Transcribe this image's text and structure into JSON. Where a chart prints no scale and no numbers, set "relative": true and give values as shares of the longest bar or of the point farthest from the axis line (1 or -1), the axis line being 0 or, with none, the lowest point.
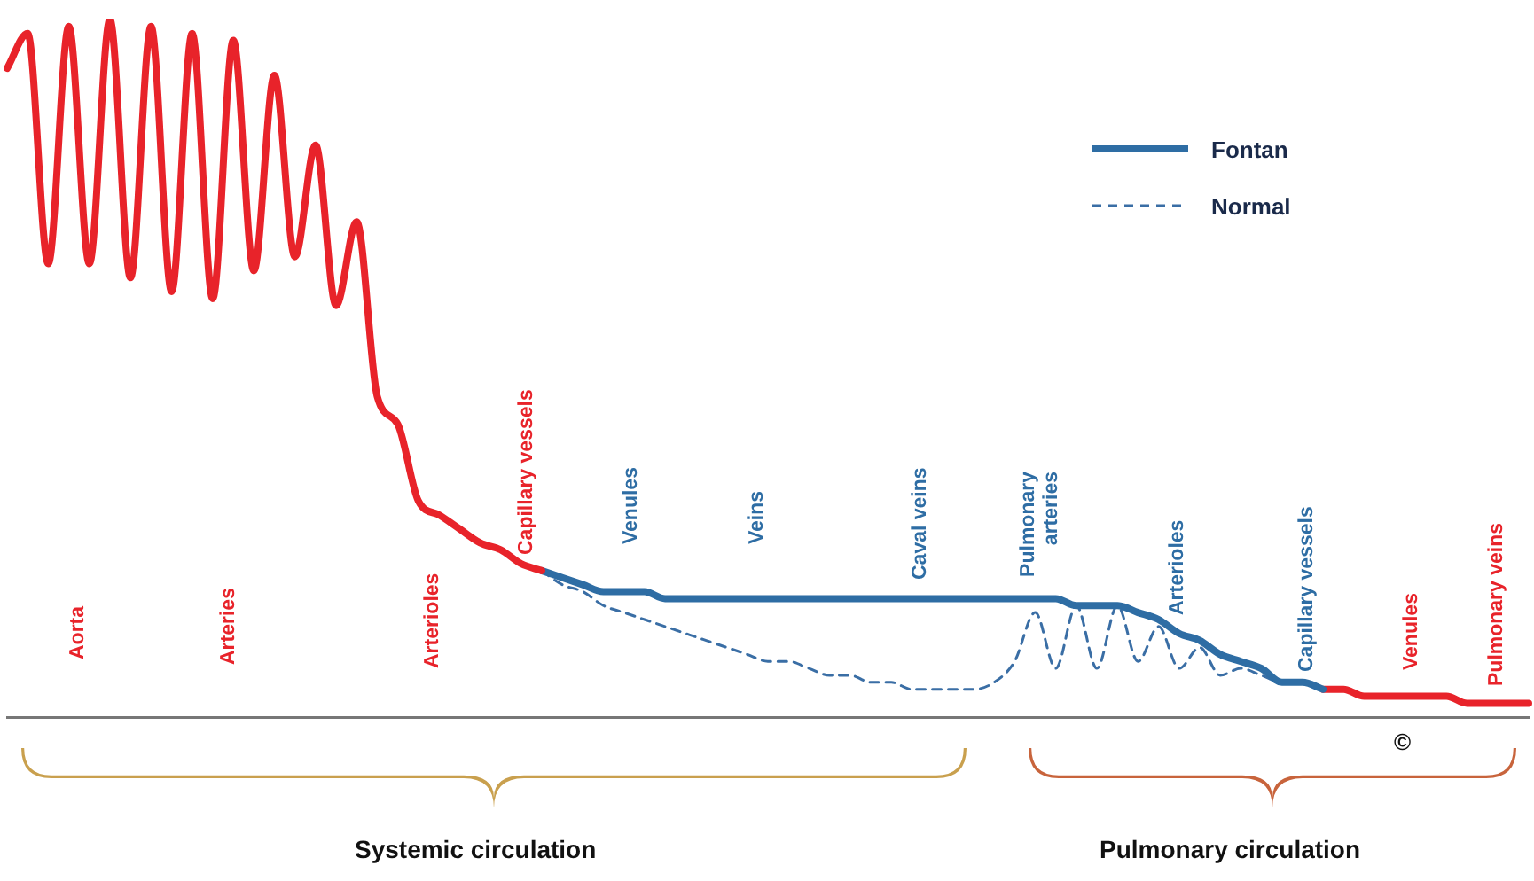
{
  "chart_data": {
    "type": "line",
    "relative": true,
    "marker": "none",
    "legend": "top right",
    "grid": false,
    "categories": [
      null,
      null,
      null,
      null,
      null,
      null,
      null,
      null,
      null,
      null,
      null,
      null,
      null,
      null,
      null,
      null,
      null,
      null,
      null,
      null,
      null,
      null,
      null,
      null,
      null,
      null,
      null,
      null,
      null,
      null,
      null,
      null,
      null,
      null,
      null,
      null,
      null,
      null,
      null,
      null,
      null,
      null,
      null,
      null,
      null,
      null,
      null,
      null,
      null,
      null,
      null,
      null,
      null,
      null,
      null,
      null,
      null,
      null,
      null,
      null,
      null,
      null,
      null,
      null,
      null,
      null,
      null,
      null,
      null,
      null,
      null,
      null,
      null,
      null,
      null
    ],
    "series": [
      {
        "color": "#e8232a",
        "values": [
          0.93,
          0.98,
          0.65,
          0.99,
          0.65,
          1,
          0.63,
          0.99,
          0.61,
          0.98,
          0.6,
          0.97,
          0.64,
          0.92,
          0.66,
          0.82,
          0.59,
          0.71,
          0.46,
          0.42,
          0.31,
          0.29,
          0.27,
          0.25,
          0.24,
          0.22,
          0.21,
          null,
          null,
          null,
          null,
          null,
          null,
          null,
          null,
          null,
          null,
          null,
          null,
          null,
          null,
          null,
          null,
          null,
          null,
          null,
          null,
          null,
          null,
          null,
          null,
          null,
          null,
          null,
          null,
          null,
          null,
          null,
          null,
          null,
          null,
          null,
          null,
          null,
          null,
          null,
          null,
          null,
          null,
          null,
          null,
          null,
          null,
          null,
          null
        ]
      },
      {
        "name": "Fontan",
        "color": "#2e6da4",
        "values": [
          null,
          null,
          null,
          null,
          null,
          null,
          null,
          null,
          null,
          null,
          null,
          null,
          null,
          null,
          null,
          null,
          null,
          null,
          null,
          null,
          null,
          null,
          null,
          null,
          null,
          null,
          0.21,
          0.2,
          0.19,
          0.18,
          0.18,
          0.18,
          0.17,
          0.17,
          0.17,
          0.17,
          0.17,
          0.17,
          0.17,
          0.17,
          0.17,
          0.17,
          0.17,
          0.17,
          0.17,
          0.17,
          0.17,
          0.17,
          0.17,
          0.17,
          0.17,
          0.17,
          0.16,
          0.16,
          0.16,
          0.15,
          0.14,
          0.12,
          0.11,
          0.09,
          0.08,
          0.07,
          0.05,
          0.05,
          0.04,
          null,
          null,
          null,
          null,
          null,
          null,
          null,
          null,
          null,
          null
        ]
      },
      {
        "name": "Normal",
        "color": "#3a6ea5",
        "line_style": "dashed",
        "values": [
          null,
          null,
          null,
          null,
          null,
          null,
          null,
          null,
          null,
          null,
          null,
          null,
          null,
          null,
          null,
          null,
          null,
          null,
          null,
          null,
          null,
          null,
          null,
          null,
          null,
          null,
          0.21,
          0.19,
          0.18,
          0.16,
          0.15,
          0.14,
          0.13,
          0.12,
          0.11,
          0.1,
          0.09,
          0.08,
          0.08,
          0.07,
          0.06,
          0.06,
          0.05,
          0.05,
          0.04,
          0.04,
          0.04,
          0.04,
          0.05,
          0.08,
          0.15,
          0.07,
          0.16,
          0.07,
          0.16,
          0.08,
          0.13,
          0.07,
          0.1,
          0.06,
          0.07,
          0.06,
          0.05,
          0.05,
          0.04,
          null,
          null,
          null,
          null,
          null,
          null,
          null,
          null,
          null,
          null
        ]
      },
      {
        "color": "#e8232a",
        "values": [
          null,
          null,
          null,
          null,
          null,
          null,
          null,
          null,
          null,
          null,
          null,
          null,
          null,
          null,
          null,
          null,
          null,
          null,
          null,
          null,
          null,
          null,
          null,
          null,
          null,
          null,
          null,
          null,
          null,
          null,
          null,
          null,
          null,
          null,
          null,
          null,
          null,
          null,
          null,
          null,
          null,
          null,
          null,
          null,
          null,
          null,
          null,
          null,
          null,
          null,
          null,
          null,
          null,
          null,
          null,
          null,
          null,
          null,
          null,
          null,
          null,
          null,
          null,
          null,
          0.04,
          0.04,
          0.03,
          0.03,
          0.03,
          0.03,
          0.03,
          0.02,
          0.02,
          0.02,
          0.02
        ]
      }
    ],
    "annotations": [
      "Aorta",
      "Arteries",
      "Arterioles",
      "Capillary vessels",
      "Venules",
      "Veins",
      "Caval veins",
      "Pulmonary arteries",
      "Arterioles",
      "Capillary vessels",
      "Venules",
      "Pulmonary veins",
      "Systemic circulation",
      "Pulmonary circulation",
      "©"
    ]
  }
}
